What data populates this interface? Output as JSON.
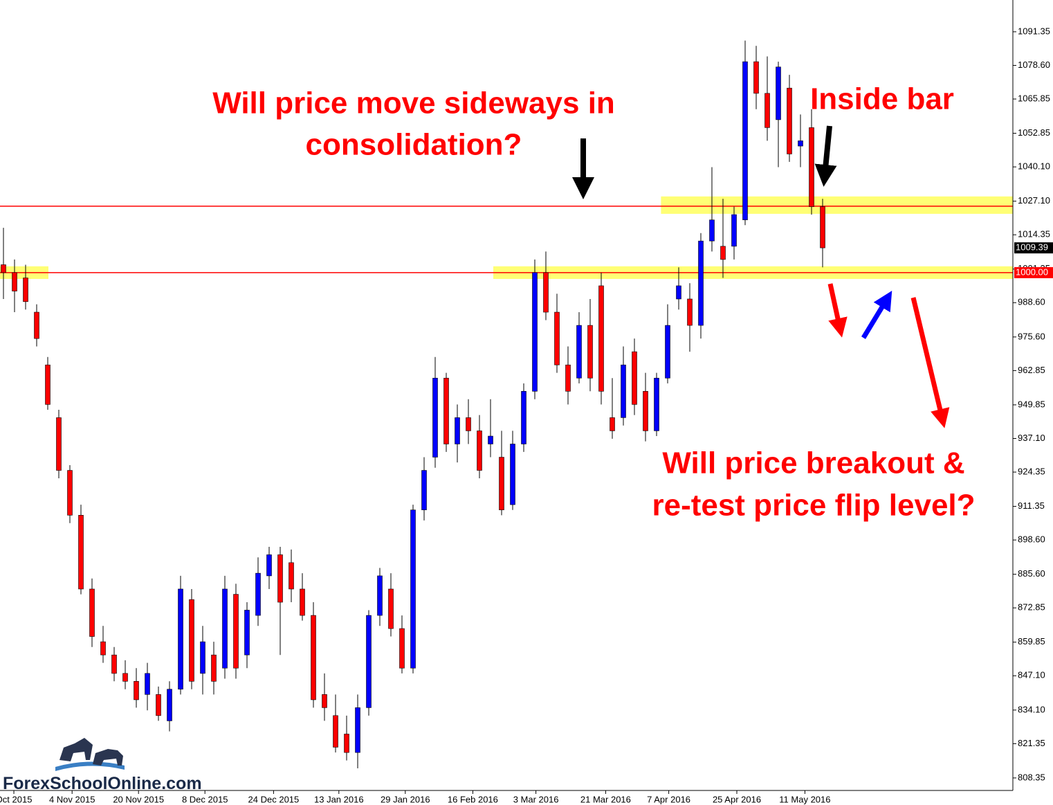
{
  "chart_data": {
    "type": "candlestick",
    "up_color": "#0000ff",
    "down_color": "#ff0000",
    "wick_color": "#000000",
    "ylim": [
      803.6,
      1103.4
    ],
    "xlim": [
      -0.3125,
      91.1875
    ],
    "yticks": [
      808.35,
      821.35,
      {
        "value": 834.1,
        "label": "834.10"
      },
      {
        "value": 847.1,
        "label": "847.10"
      },
      859.85,
      872.85,
      {
        "value": 885.6,
        "label": "885.60"
      },
      {
        "value": 898.6,
        "label": "898.60"
      },
      911.35,
      924.35,
      {
        "value": 937.1,
        "label": "937.10"
      },
      949.85,
      962.85,
      {
        "value": 975.6,
        "label": "975.60"
      },
      {
        "value": 988.6,
        "label": "988.60"
      },
      1001.35,
      1014.35,
      {
        "value": 1027.1,
        "label": "1027.10"
      },
      {
        "value": 1040.1,
        "label": "1040.10"
      },
      1052.85,
      1065.85,
      {
        "value": 1078.6,
        "label": "1078.60"
      },
      1091.35
    ],
    "xticks": [
      {
        "value": 0.94,
        "label": "Oct 2015"
      },
      {
        "value": 6.2,
        "label": "4 Nov 2015"
      },
      {
        "value": 12.2,
        "label": "20 Nov 2015"
      },
      {
        "value": 18.2,
        "label": "8 Dec 2015"
      },
      {
        "value": 24.4,
        "label": "24 Dec 2015"
      },
      {
        "value": 30.3,
        "label": "13 Jan 2016"
      },
      {
        "value": 36.3,
        "label": "29 Jan 2016"
      },
      {
        "value": 42.4,
        "label": "16 Feb 2016"
      },
      {
        "value": 48.1,
        "label": "3 Mar 2016"
      },
      {
        "value": 54.4,
        "label": "21 Mar 2016"
      },
      {
        "value": 60.1,
        "label": "7 Apr 2016"
      },
      {
        "value": 66.25,
        "label": "25 Apr 2016"
      },
      {
        "value": 72.4,
        "label": "11 May 2016"
      }
    ],
    "ohlc": [
      [
        1003,
        1017,
        990,
        1000
      ],
      [
        1000,
        1005,
        985,
        993
      ],
      [
        998,
        1003,
        986,
        989
      ],
      [
        985,
        988,
        972,
        975
      ],
      [
        965,
        968,
        948,
        950
      ],
      [
        945,
        948,
        922,
        925
      ],
      [
        925,
        927,
        905,
        908
      ],
      [
        908,
        912,
        878,
        880
      ],
      [
        880,
        884,
        858,
        862
      ],
      [
        860,
        866,
        852,
        855
      ],
      [
        855,
        858,
        845,
        848
      ],
      [
        848,
        853,
        842,
        845
      ],
      [
        845,
        850,
        835,
        838
      ],
      [
        840,
        852,
        834,
        848
      ],
      [
        840,
        843,
        830,
        832
      ],
      [
        830,
        845,
        826,
        842
      ],
      [
        842,
        885,
        840,
        880
      ],
      [
        876,
        880,
        842,
        845
      ],
      [
        848,
        866,
        840,
        860
      ],
      [
        855,
        860,
        840,
        845
      ],
      [
        850,
        885,
        846,
        880
      ],
      [
        878,
        882,
        846,
        850
      ],
      [
        855,
        875,
        850,
        872
      ],
      [
        870,
        892,
        866,
        886
      ],
      [
        885,
        896,
        880,
        893
      ],
      [
        893,
        896,
        855,
        875
      ],
      [
        890,
        895,
        875,
        880
      ],
      [
        880,
        886,
        868,
        870
      ],
      [
        870,
        875,
        835,
        838
      ],
      [
        840,
        848,
        830,
        835
      ],
      [
        832,
        840,
        818,
        820
      ],
      [
        825,
        832,
        815,
        818
      ],
      [
        818,
        840,
        812,
        835
      ],
      [
        835,
        872,
        832,
        870
      ],
      [
        870,
        888,
        866,
        885
      ],
      [
        880,
        886,
        862,
        865
      ],
      [
        865,
        870,
        848,
        850
      ],
      [
        850,
        912,
        848,
        910
      ],
      [
        910,
        930,
        906,
        925
      ],
      [
        930,
        968,
        926,
        960
      ],
      [
        960,
        962,
        932,
        935
      ],
      [
        935,
        950,
        928,
        945
      ],
      [
        945,
        952,
        935,
        940
      ],
      [
        940,
        946,
        922,
        925
      ],
      [
        935,
        952,
        930,
        938
      ],
      [
        930,
        940,
        908,
        910
      ],
      [
        912,
        940,
        910,
        935
      ],
      [
        935,
        958,
        932,
        955
      ],
      [
        955,
        1005,
        952,
        1000
      ],
      [
        1000,
        1008,
        982,
        985
      ],
      [
        985,
        992,
        962,
        965
      ],
      [
        965,
        972,
        950,
        955
      ],
      [
        960,
        985,
        958,
        980
      ],
      [
        980,
        990,
        955,
        960
      ],
      [
        995,
        1000,
        950,
        955
      ],
      [
        945,
        960,
        937,
        940
      ],
      [
        945,
        972,
        942,
        965
      ],
      [
        970,
        975,
        946,
        950
      ],
      [
        955,
        962,
        936,
        940
      ],
      [
        940,
        962,
        938,
        960
      ],
      [
        960,
        988,
        958,
        980
      ],
      [
        990,
        1002,
        986,
        995
      ],
      [
        990,
        996,
        970,
        980
      ],
      [
        980,
        1015,
        975,
        1012
      ],
      [
        1012,
        1040,
        1008,
        1020
      ],
      [
        1010,
        1028,
        998,
        1005
      ],
      [
        1010,
        1025,
        1005,
        1022
      ],
      [
        1020,
        1088,
        1018,
        1080
      ],
      [
        1080,
        1086,
        1062,
        1068
      ],
      [
        1068,
        1082,
        1050,
        1055
      ],
      [
        1058,
        1080,
        1040,
        1078
      ],
      [
        1070,
        1075,
        1042,
        1045
      ],
      [
        1048,
        1060,
        1040,
        1050
      ],
      [
        1055,
        1062,
        1022,
        1025
      ],
      [
        1025,
        1028,
        1002,
        1009.39
      ]
    ],
    "levels": [
      {
        "value": 1000,
        "color": "#ff0000"
      },
      {
        "value": 1025.2,
        "color": "#ff0000"
      }
    ],
    "zones": [
      {
        "from": 997.6,
        "to": 1002.4,
        "x_from": -0.3125,
        "x_to": 4.06
      },
      {
        "from": 997.6,
        "to": 1002.4,
        "x_from": 44.25,
        "x_to": 91.1875
      },
      {
        "from": 1022.3,
        "to": 1028.9,
        "x_from": 59.4,
        "x_to": 91.1875
      }
    ],
    "price_labels": [
      {
        "value": 1009.39,
        "label": "1009.39",
        "color": "#000000"
      },
      {
        "value": 1000,
        "label": "1000.00",
        "color": "#ff0000"
      }
    ],
    "annotations": [
      "Will price move sideways in",
      "consolidation?",
      "Inside bar",
      "Will price breakout &",
      "re-test price flip level?"
    ],
    "logo": "ForexSchoolOnline.com"
  }
}
